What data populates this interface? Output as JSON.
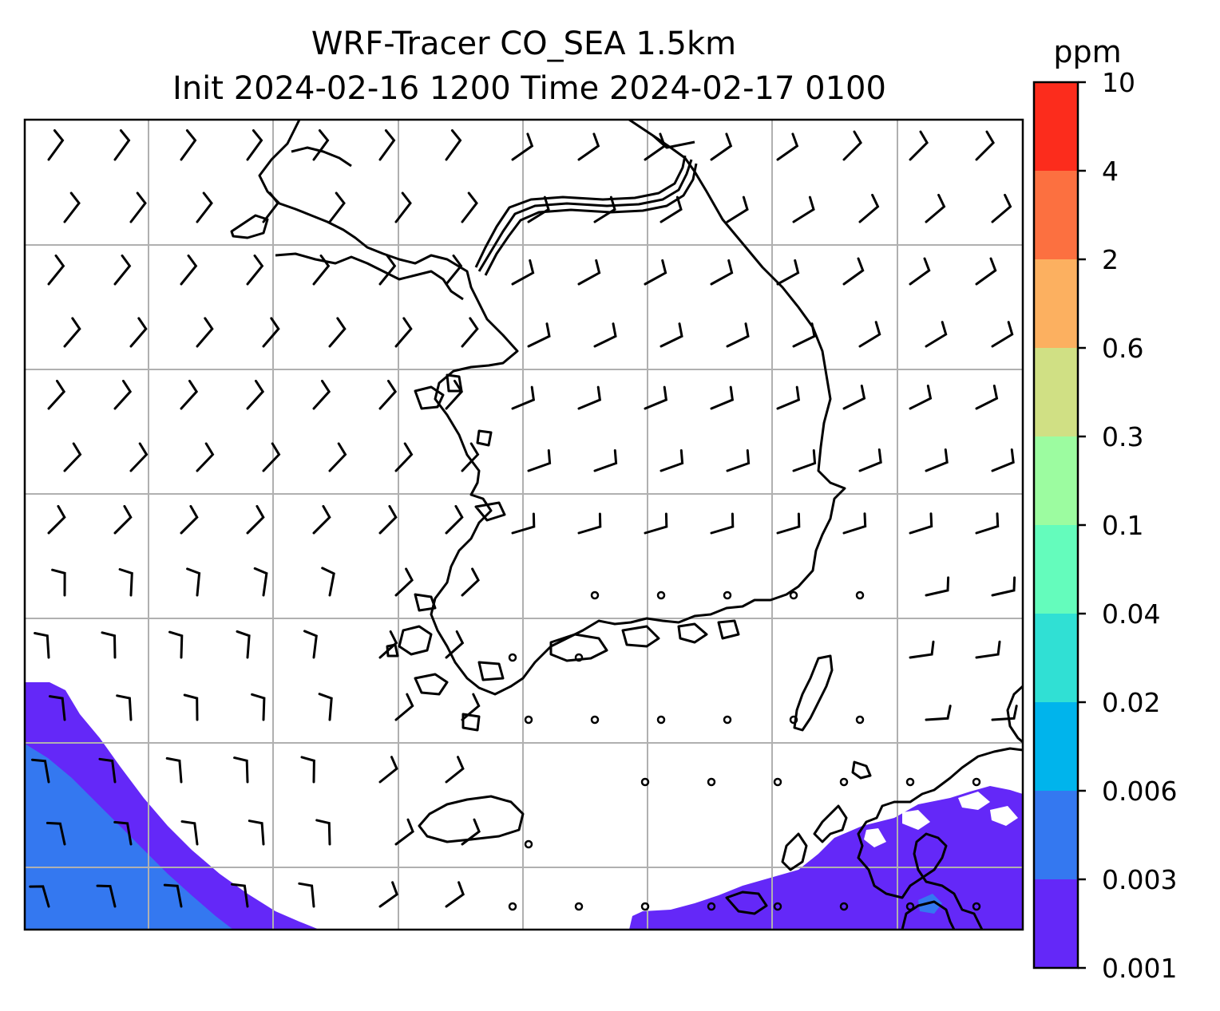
{
  "title_line1": "WRF-Tracer CO_SEA 1.5km",
  "title_line2": "Init 2024-02-16 1200 Time 2024-02-17 0100",
  "colorbar": {
    "unit": "ppm",
    "tick_labels": [
      "0.001",
      "0.003",
      "0.006",
      "0.02",
      "0.04",
      "0.1",
      "0.3",
      "0.6",
      "2",
      "4",
      "10"
    ],
    "colors": [
      "#6428f8",
      "#3478f0",
      "#00b4ec",
      "#30e0d4",
      "#64fcbc",
      "#9cfca0",
      "#d0e084",
      "#fcb060",
      "#fc7040",
      "#fc2c1c"
    ]
  },
  "map": {
    "gridlines": true,
    "coastline_color": "#000000",
    "grid_color": "#b0b0b0",
    "concentration_color_low": "#6428f8",
    "concentration_color_mid": "#3478f0"
  }
}
